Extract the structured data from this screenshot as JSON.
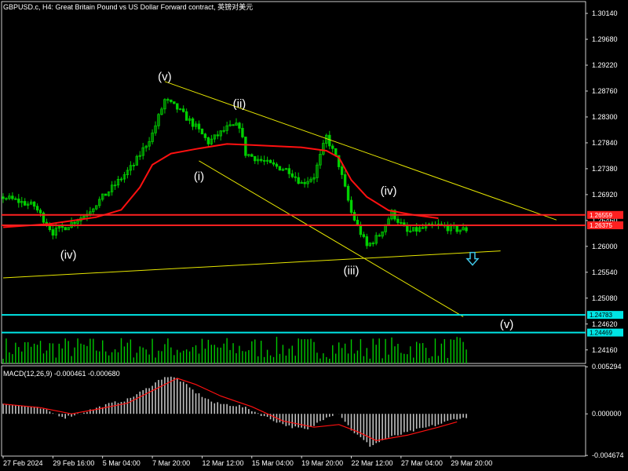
{
  "title": "GBPUSD.c, H4:  Great Britain Pound vs US Dollar Forward contract, 英镑对美元",
  "colors": {
    "background": "#000000",
    "up": "#00d000",
    "down": "#00d000",
    "ma": "#ff1010",
    "trendline": "#e6e600",
    "support_line": "#00e5e5",
    "resistance_line": "#ff2020",
    "volume": "#00c800",
    "macd_hist": "#c0c0c0",
    "macd_signal": "#ff1010",
    "arrow": "#3fc6e6",
    "axis": "#ffffff"
  },
  "chart_data": [
    {
      "type": "candlestick",
      "symbol": "GBPUSD.c",
      "timeframe": "H4",
      "y_ticks": [
        "1.30140",
        "1.29680",
        "1.29220",
        "1.28760",
        "1.28300",
        "1.27840",
        "1.27380",
        "1.26920",
        "1.26460",
        "1.26000",
        "1.25540",
        "1.25080",
        "1.24620",
        "1.24160"
      ],
      "y_tick_values": [
        1.3014,
        1.2968,
        1.2922,
        1.2876,
        1.283,
        1.2784,
        1.2738,
        1.2692,
        1.2646,
        1.26,
        1.2554,
        1.2508,
        1.2462,
        1.2416
      ],
      "ylim": [
        1.2392,
        1.3035
      ],
      "x_labels": [
        "27 Feb 2024",
        "29 Feb 16:00",
        "5 Mar 04:00",
        "7 Mar 20:00",
        "12 Mar 12:00",
        "15 Mar 04:00",
        "19 Mar 20:00",
        "22 Mar 12:00",
        "27 Mar 04:00",
        "29 Mar 20:00"
      ],
      "bar_count": 150,
      "price_path": [
        [
          0,
          1.2688
        ],
        [
          10,
          1.2672
        ],
        [
          16,
          1.2625
        ],
        [
          20,
          1.2635
        ],
        [
          26,
          1.2655
        ],
        [
          34,
          1.2698
        ],
        [
          42,
          1.2745
        ],
        [
          48,
          1.28
        ],
        [
          52,
          1.286
        ],
        [
          56,
          1.2845
        ],
        [
          62,
          1.2812
        ],
        [
          66,
          1.2785
        ],
        [
          72,
          1.281
        ],
        [
          76,
          1.2815
        ],
        [
          78,
          1.2765
        ],
        [
          86,
          1.2745
        ],
        [
          92,
          1.2735
        ],
        [
          96,
          1.2712
        ],
        [
          100,
          1.2725
        ],
        [
          104,
          1.2795
        ],
        [
          108,
          1.2745
        ],
        [
          112,
          1.266
        ],
        [
          117,
          1.26
        ],
        [
          121,
          1.262
        ],
        [
          125,
          1.266
        ],
        [
          130,
          1.2625
        ],
        [
          135,
          1.2632
        ],
        [
          140,
          1.2637
        ],
        [
          146,
          1.263
        ]
      ],
      "ma_path": [
        [
          0,
          1.2634
        ],
        [
          15,
          1.264
        ],
        [
          30,
          1.2652
        ],
        [
          38,
          1.2665
        ],
        [
          44,
          1.2705
        ],
        [
          48,
          1.2745
        ],
        [
          54,
          1.2765
        ],
        [
          62,
          1.2773
        ],
        [
          72,
          1.2782
        ],
        [
          80,
          1.278
        ],
        [
          96,
          1.2776
        ],
        [
          104,
          1.277
        ],
        [
          108,
          1.2758
        ],
        [
          112,
          1.2718
        ],
        [
          117,
          1.2688
        ],
        [
          124,
          1.2664
        ],
        [
          132,
          1.2656
        ],
        [
          140,
          1.265
        ]
      ],
      "horizontal_levels": [
        {
          "value": 1.26559,
          "label": "1.26559",
          "color": "#ff2020"
        },
        {
          "value": 1.26375,
          "label": "1.26375",
          "color": "#ff2020"
        },
        {
          "value": 1.24783,
          "label": "1.24783",
          "color": "#00e5e5"
        },
        {
          "value": 1.24469,
          "label": "1.24469",
          "color": "#00e5e5"
        }
      ],
      "trendlines": [
        {
          "from": [
            52,
            1.2893
          ],
          "to": [
            178,
            1.2647
          ]
        },
        {
          "from": [
            63,
            1.2752
          ],
          "to": [
            148,
            1.2475
          ]
        },
        {
          "from": [
            0,
            1.2544
          ],
          "to": [
            160,
            1.2592
          ]
        }
      ],
      "wave_labels": [
        {
          "text": "(v)",
          "bar": 52,
          "price": 1.2895
        },
        {
          "text": "(ii)",
          "bar": 76,
          "price": 1.2847
        },
        {
          "text": "(i)",
          "bar": 63,
          "price": 1.2718
        },
        {
          "text": "(iv)",
          "bar": 21,
          "price": 1.2578
        },
        {
          "text": "(iii)",
          "bar": 112,
          "price": 1.255
        },
        {
          "text": "(iv)",
          "bar": 124,
          "price": 1.2692
        },
        {
          "text": "(v)",
          "bar": 162,
          "price": 1.2455
        }
      ],
      "arrow": {
        "bar": 151,
        "price": 1.2592,
        "direction": "down"
      }
    },
    {
      "type": "bar",
      "name": "MACD(12,26,9) -0.000461 -0.000680",
      "label": "MACD(12,26,9) -0.000461 -0.000680",
      "y_ticks": [
        "0.005294",
        "0.000000",
        "-0.004674"
      ],
      "ylim": [
        -0.00475,
        0.0054
      ],
      "hist_path": [
        [
          0,
          0.0012
        ],
        [
          12,
          0.0006
        ],
        [
          20,
          -0.0004
        ],
        [
          26,
          0.0002
        ],
        [
          34,
          0.0011
        ],
        [
          40,
          0.0016
        ],
        [
          46,
          0.0028
        ],
        [
          52,
          0.0042
        ],
        [
          56,
          0.004
        ],
        [
          62,
          0.0024
        ],
        [
          68,
          0.0012
        ],
        [
          76,
          0.0009
        ],
        [
          80,
          0.0004
        ],
        [
          86,
          -0.0006
        ],
        [
          92,
          -0.0014
        ],
        [
          98,
          -0.0018
        ],
        [
          104,
          -0.0003
        ],
        [
          108,
          0.0001
        ],
        [
          112,
          -0.0018
        ],
        [
          118,
          -0.0036
        ],
        [
          124,
          -0.0027
        ],
        [
          132,
          -0.0019
        ],
        [
          140,
          -0.0012
        ],
        [
          146,
          -0.0005
        ]
      ],
      "signal_path": [
        [
          0,
          0.0011
        ],
        [
          12,
          0.0007
        ],
        [
          22,
          0.0
        ],
        [
          30,
          0.0005
        ],
        [
          40,
          0.0012
        ],
        [
          48,
          0.0026
        ],
        [
          56,
          0.004
        ],
        [
          62,
          0.0033
        ],
        [
          70,
          0.002
        ],
        [
          80,
          0.0008
        ],
        [
          90,
          -0.0008
        ],
        [
          100,
          -0.0015
        ],
        [
          108,
          -0.0012
        ],
        [
          114,
          -0.002
        ],
        [
          120,
          -0.003
        ],
        [
          130,
          -0.0024
        ],
        [
          140,
          -0.0015
        ],
        [
          146,
          -0.0009
        ]
      ]
    }
  ]
}
